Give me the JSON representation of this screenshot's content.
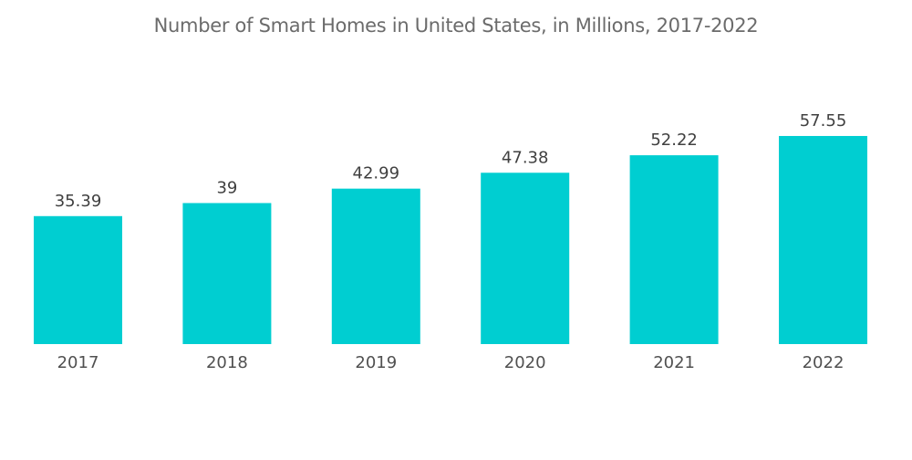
{
  "chart_data": {
    "type": "bar",
    "title": "Number of Smart Homes in United States, in Millions, 2017-2022",
    "categories": [
      "2017",
      "2018",
      "2019",
      "2020",
      "2021",
      "2022"
    ],
    "values": [
      35.39,
      39,
      42.99,
      47.38,
      52.22,
      57.55
    ],
    "data_labels": [
      "35.39",
      "39",
      "42.99",
      "47.38",
      "52.22",
      "57.55"
    ],
    "xlabel": "",
    "ylabel": "",
    "ylim": [
      0,
      58
    ],
    "grid": false,
    "legend": "none",
    "bar_color": "#00ced1"
  }
}
